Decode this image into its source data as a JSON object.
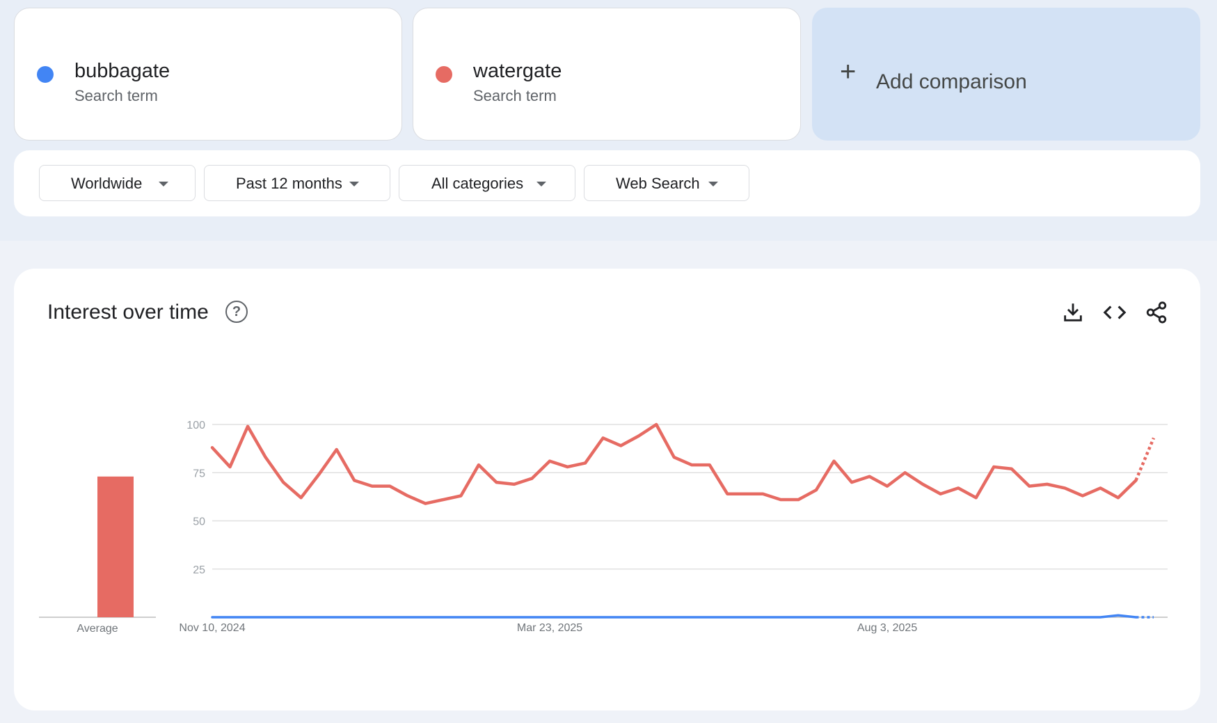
{
  "terms": [
    {
      "name": "bubbagate",
      "subtitle": "Search term",
      "color": "#4285f4"
    },
    {
      "name": "watergate",
      "subtitle": "Search term",
      "color": "#e66b63"
    }
  ],
  "add_comparison": {
    "label": "Add comparison",
    "icon": "plus-icon"
  },
  "filters": [
    {
      "label": "Worldwide"
    },
    {
      "label": "Past 12 months"
    },
    {
      "label": "All categories"
    },
    {
      "label": "Web Search"
    }
  ],
  "panel": {
    "title": "Interest over time",
    "help_icon": "question-circle-icon",
    "actions": [
      "download-icon",
      "embed-code-icon",
      "share-icon"
    ]
  },
  "chart_data": {
    "type": "line",
    "title": "Interest over time",
    "y_ticks": [
      100,
      75,
      50,
      25
    ],
    "ylim": [
      0,
      100
    ],
    "x_tick_labels": [
      "Nov 10, 2024",
      "Mar 23, 2025",
      "Aug 3, 2025"
    ],
    "average_label": "Average",
    "grid": true,
    "series": [
      {
        "name": "watergate",
        "color": "#e66b63",
        "average": 73,
        "values": [
          88,
          78,
          99,
          83,
          70,
          62,
          74,
          87,
          71,
          68,
          68,
          63,
          59,
          61,
          63,
          79,
          70,
          69,
          72,
          81,
          78,
          80,
          93,
          89,
          94,
          100,
          83,
          79,
          79,
          64,
          64,
          64,
          61,
          61,
          66,
          81,
          70,
          73,
          68,
          75,
          69,
          64,
          67,
          62,
          78,
          77,
          68,
          69,
          67,
          63,
          67,
          62,
          71,
          93
        ],
        "partial_last_point": true
      },
      {
        "name": "bubbagate",
        "color": "#4285f4",
        "average": 0,
        "values": [
          0,
          0,
          0,
          0,
          0,
          0,
          0,
          0,
          0,
          0,
          0,
          0,
          0,
          0,
          0,
          0,
          0,
          0,
          0,
          0,
          0,
          0,
          0,
          0,
          0,
          0,
          0,
          0,
          0,
          0,
          0,
          0,
          0,
          0,
          0,
          0,
          0,
          0,
          0,
          0,
          0,
          0,
          0,
          0,
          0,
          0,
          0,
          0,
          0,
          0,
          0,
          1,
          0,
          0
        ],
        "partial_last_point": true
      }
    ]
  }
}
